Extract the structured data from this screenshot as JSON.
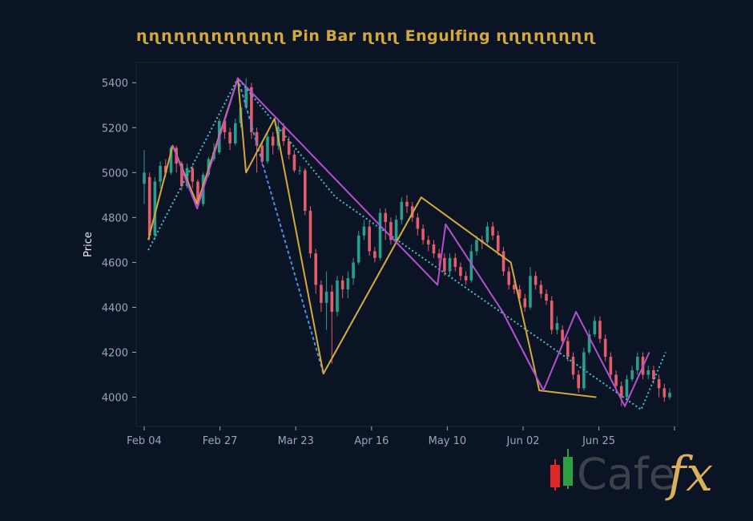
{
  "chart_data": {
    "type": "candlestick",
    "title": "ɳɳɳɳɳɳɳɳɳɳɳɳ Pin Bar ɳɳɳ Engulfing ɳɳɳɳɳɳɳɳ",
    "xlabel": "",
    "ylabel": "Price",
    "xtick_labels": [
      "Feb 04",
      "Feb 27",
      "Mar 23",
      "Apr 16",
      "May 10",
      "Jun 02",
      "Jun 25"
    ],
    "ytick_labels": [
      "4000",
      "4200",
      "4400",
      "4600",
      "4800",
      "5000",
      "5200",
      "5400"
    ],
    "yticks": [
      4000,
      4200,
      4400,
      4600,
      4800,
      5000,
      5200,
      5400
    ],
    "ylim": [
      3870,
      5490
    ],
    "date_range": [
      "Feb 04",
      "Jul 16"
    ],
    "grid": false,
    "colors": {
      "up": "#2a9d8f",
      "down": "#e35d6a",
      "zigzag_gold": "#d4a93a",
      "zigzag_magenta": "#b44fd1",
      "zigzag_blue": "#4c8fe8",
      "zigzag_cyan": "#3cc0d6",
      "axis_text": "#9aa6b8",
      "title": "#d4a93a"
    },
    "candles": [
      [
        "Feb 04",
        4950,
        5000,
        5100,
        4860
      ],
      [
        "Feb 05",
        4980,
        4720,
        5000,
        4700
      ],
      [
        "Feb 06",
        4720,
        4960,
        4980,
        4700
      ],
      [
        "Feb 07",
        4960,
        5030,
        5050,
        4930
      ],
      [
        "Feb 08",
        5030,
        5000,
        5060,
        4980
      ],
      [
        "Feb 09",
        5000,
        5110,
        5120,
        4990
      ],
      [
        "Feb 10",
        5110,
        5040,
        5120,
        5000
      ],
      [
        "Feb 11",
        5040,
        4940,
        5050,
        4920
      ],
      [
        "Feb 12",
        4940,
        5020,
        5040,
        4930
      ],
      [
        "Feb 13",
        5020,
        4960,
        5030,
        4930
      ],
      [
        "Feb 14",
        4960,
        4860,
        4970,
        4840
      ],
      [
        "Feb 15",
        4860,
        4990,
        5000,
        4850
      ],
      [
        "Feb 16",
        4990,
        5060,
        5070,
        4980
      ],
      [
        "Feb 17",
        5060,
        5090,
        5130,
        5050
      ],
      [
        "Feb 18",
        5090,
        5230,
        5240,
        5080
      ],
      [
        "Feb 19",
        5230,
        5180,
        5240,
        5150
      ],
      [
        "Feb 20",
        5180,
        5130,
        5200,
        5100
      ],
      [
        "Feb 21",
        5130,
        5220,
        5240,
        5120
      ],
      [
        "Feb 22",
        5220,
        5290,
        5300,
        5200
      ],
      [
        "Feb 23",
        5290,
        5380,
        5420,
        5280
      ],
      [
        "Feb 24",
        5380,
        5180,
        5400,
        5150
      ],
      [
        "Feb 25",
        5180,
        5120,
        5200,
        5000
      ],
      [
        "Feb 26",
        5120,
        5050,
        5140,
        5030
      ],
      [
        "Feb 27",
        5050,
        5160,
        5180,
        5040
      ],
      [
        "Feb 28",
        5160,
        5120,
        5180,
        5080
      ],
      [
        "Mar 01",
        5120,
        5200,
        5240,
        5100
      ],
      [
        "Mar 02",
        5200,
        5140,
        5220,
        5120
      ],
      [
        "Mar 03",
        5140,
        5080,
        5160,
        5060
      ],
      [
        "Mar 04",
        5080,
        5010,
        5100,
        5000
      ],
      [
        "Mar 05",
        5010,
        5010,
        5030,
        4990
      ],
      [
        "Mar 06",
        5010,
        4830,
        5020,
        4810
      ],
      [
        "Mar 07",
        4830,
        4640,
        4850,
        4620
      ],
      [
        "Mar 08",
        4640,
        4500,
        4660,
        4460
      ],
      [
        "Mar 09",
        4500,
        4420,
        4520,
        4380
      ],
      [
        "Mar 10",
        4420,
        4470,
        4560,
        4300
      ],
      [
        "Mar 11",
        4470,
        4380,
        4500,
        4150
      ],
      [
        "Mar 12",
        4380,
        4520,
        4540,
        4360
      ],
      [
        "Mar 13",
        4520,
        4480,
        4540,
        4440
      ],
      [
        "Mar 14",
        4480,
        4530,
        4560,
        4440
      ],
      [
        "Mar 15",
        4530,
        4600,
        4620,
        4500
      ],
      [
        "Mar 16",
        4600,
        4720,
        4740,
        4590
      ],
      [
        "Mar 17",
        4720,
        4760,
        4790,
        4700
      ],
      [
        "Mar 18",
        4760,
        4650,
        4780,
        4630
      ],
      [
        "Mar 19",
        4650,
        4620,
        4670,
        4600
      ],
      [
        "Mar 20",
        4620,
        4820,
        4840,
        4610
      ],
      [
        "Mar 21",
        4820,
        4780,
        4840,
        4700
      ],
      [
        "Mar 22",
        4780,
        4700,
        4800,
        4680
      ],
      [
        "Mar 23",
        4700,
        4790,
        4810,
        4690
      ],
      [
        "Mar 24",
        4790,
        4870,
        4890,
        4770
      ],
      [
        "Mar 25",
        4870,
        4850,
        4900,
        4820
      ],
      [
        "Mar 26",
        4850,
        4800,
        4870,
        4780
      ],
      [
        "Mar 27",
        4800,
        4750,
        4820,
        4720
      ],
      [
        "Mar 28",
        4750,
        4700,
        4770,
        4680
      ],
      [
        "Mar 29",
        4700,
        4680,
        4720,
        4650
      ],
      [
        "Mar 30",
        4680,
        4640,
        4700,
        4620
      ],
      [
        "Mar 31",
        4640,
        4620,
        4660,
        4580
      ],
      [
        "Apr 01",
        4620,
        4560,
        4640,
        4540
      ],
      [
        "Apr 02",
        4560,
        4620,
        4640,
        4540
      ],
      [
        "Apr 03",
        4620,
        4580,
        4640,
        4560
      ],
      [
        "Apr 04",
        4580,
        4540,
        4600,
        4520
      ],
      [
        "Apr 05",
        4540,
        4520,
        4560,
        4500
      ],
      [
        "Apr 06",
        4520,
        4650,
        4680,
        4510
      ],
      [
        "Apr 07",
        4650,
        4700,
        4720,
        4630
      ],
      [
        "Apr 08",
        4700,
        4690,
        4720,
        4660
      ],
      [
        "Apr 09",
        4690,
        4760,
        4780,
        4680
      ],
      [
        "Apr 10",
        4760,
        4720,
        4780,
        4700
      ],
      [
        "Apr 11",
        4720,
        4650,
        4740,
        4630
      ],
      [
        "Apr 12",
        4650,
        4560,
        4670,
        4540
      ],
      [
        "Apr 13",
        4560,
        4500,
        4580,
        4480
      ],
      [
        "Apr 14",
        4500,
        4480,
        4520,
        4460
      ],
      [
        "Apr 15",
        4480,
        4440,
        4500,
        4420
      ],
      [
        "Apr 16",
        4440,
        4400,
        4460,
        4380
      ],
      [
        "Apr 17",
        4400,
        4540,
        4580,
        4390
      ],
      [
        "Apr 18",
        4540,
        4500,
        4560,
        4480
      ],
      [
        "Apr 19",
        4500,
        4460,
        4520,
        4440
      ],
      [
        "Apr 20",
        4460,
        4430,
        4480,
        4410
      ],
      [
        "Apr 21",
        4430,
        4300,
        4450,
        4280
      ],
      [
        "Apr 22",
        4300,
        4330,
        4360,
        4280
      ],
      [
        "Apr 23",
        4300,
        4250,
        4320,
        4230
      ],
      [
        "Apr 24",
        4250,
        4180,
        4270,
        4160
      ],
      [
        "Apr 25",
        4180,
        4100,
        4200,
        4080
      ],
      [
        "Apr 26",
        4100,
        4040,
        4120,
        4020
      ],
      [
        "Apr 27",
        4040,
        4200,
        4220,
        4030
      ],
      [
        "Apr 28",
        4200,
        4280,
        4300,
        4190
      ],
      [
        "Apr 29",
        4280,
        4340,
        4360,
        4270
      ],
      [
        "Apr 30",
        4340,
        4260,
        4360,
        4240
      ],
      [
        "May 01",
        4260,
        4180,
        4280,
        4160
      ],
      [
        "May 02",
        4180,
        4100,
        4200,
        4080
      ],
      [
        "May 03",
        4100,
        4050,
        4120,
        4020
      ],
      [
        "May 04",
        4050,
        4000,
        4070,
        3960
      ],
      [
        "May 05",
        4000,
        4080,
        4100,
        3990
      ],
      [
        "May 06",
        4080,
        4120,
        4140,
        4070
      ],
      [
        "May 07",
        4120,
        4180,
        4200,
        4100
      ],
      [
        "May 08",
        4180,
        4100,
        4200,
        4080
      ],
      [
        "May 09",
        4100,
        4120,
        4140,
        4080
      ],
      [
        "May 10",
        4120,
        4080,
        4140,
        4060
      ],
      [
        "May 11",
        4080,
        4040,
        4100,
        4000
      ],
      [
        "May 12",
        4040,
        4000,
        4060,
        3980
      ],
      [
        "May 13",
        4000,
        4020,
        4040,
        3990
      ]
    ],
    "zigzags": [
      {
        "color_key": "zigzag_cyan",
        "dash": "2,3",
        "points": [
          [
            1,
            4655
          ],
          [
            23,
            5420
          ],
          [
            47,
            4890
          ],
          [
            122,
            3945
          ],
          [
            128,
            4200
          ]
        ]
      },
      {
        "color_key": "zigzag_blue",
        "dash": "4,3",
        "points": [
          [
            23,
            5420
          ],
          [
            44,
            4105
          ],
          [
            68,
            4890
          ]
        ]
      },
      {
        "color_key": "zigzag_gold",
        "dash": "",
        "points": [
          [
            1,
            4700
          ],
          [
            7,
            5120
          ],
          [
            13,
            4860
          ],
          [
            23,
            5420
          ],
          [
            25,
            5000
          ],
          [
            32,
            5240
          ],
          [
            44,
            4105
          ],
          [
            68,
            4890
          ],
          [
            90,
            4600
          ],
          [
            97,
            4030
          ],
          [
            111,
            4000
          ]
        ]
      },
      {
        "color_key": "zigzag_magenta",
        "dash": "",
        "points": [
          [
            7,
            5120
          ],
          [
            13,
            4840
          ],
          [
            23,
            5420
          ],
          [
            72,
            4500
          ],
          [
            74,
            4770
          ],
          [
            88,
            4380
          ],
          [
            98,
            4030
          ],
          [
            106,
            4380
          ],
          [
            118,
            3960
          ],
          [
            124,
            4200
          ]
        ]
      },
      {
        "color_key": "zigzag_magenta",
        "dash": "7,4",
        "points": [
          [
            88,
            4380
          ],
          [
            98,
            4030
          ]
        ]
      }
    ],
    "total_periods": 130
  },
  "logo": {
    "text_cafe": "Cafe",
    "text_fx": "fx",
    "colors": {
      "red": "#e02828",
      "green": "#2ea043",
      "gray": "#4a4f58",
      "gold": "#d9b15a"
    }
  }
}
